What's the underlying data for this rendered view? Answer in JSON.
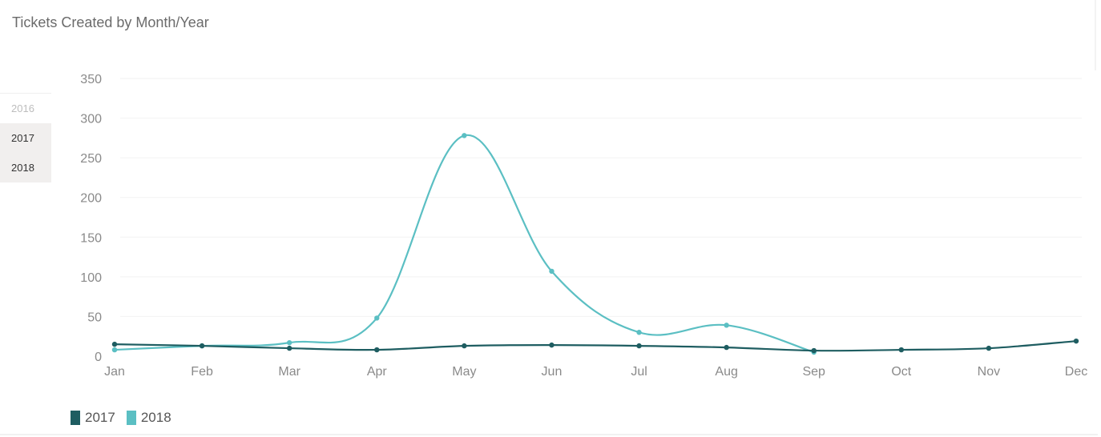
{
  "card": {
    "title": "Tickets Created by Month/Year"
  },
  "year_selector": {
    "items": [
      {
        "label": "2016",
        "state": "disabled"
      },
      {
        "label": "2017",
        "state": "selected"
      },
      {
        "label": "2018",
        "state": "selected"
      }
    ]
  },
  "legend": [
    {
      "label": "2017",
      "color": "#1e5d61"
    },
    {
      "label": "2018",
      "color": "#5bbfc3"
    }
  ],
  "chart_data": {
    "type": "line",
    "title": "Tickets Created by Month/Year",
    "xlabel": "",
    "ylabel": "",
    "categories": [
      "Jan",
      "Feb",
      "Mar",
      "Apr",
      "May",
      "Jun",
      "Jul",
      "Aug",
      "Sep",
      "Oct",
      "Nov",
      "Dec"
    ],
    "series": [
      {
        "name": "2017",
        "color": "#1e5d61",
        "values": [
          15,
          13,
          10,
          8,
          13,
          14,
          13,
          11,
          7,
          8,
          10,
          19
        ]
      },
      {
        "name": "2018",
        "color": "#5bbfc3",
        "values": [
          8,
          13,
          17,
          48,
          278,
          107,
          30,
          39,
          5,
          null,
          null,
          null
        ]
      }
    ],
    "yticks": [
      0,
      50,
      100,
      150,
      200,
      250,
      300,
      350
    ],
    "ylim": [
      0,
      350
    ],
    "grid": true,
    "smooth": true,
    "legend_position": "bottom-left"
  }
}
